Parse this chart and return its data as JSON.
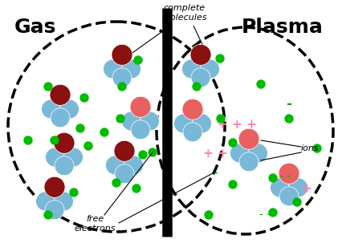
{
  "background": "#ffffff",
  "gas_label": "Gas",
  "plasma_label": "Plasma",
  "complete_molecules_label": "complete\nmolecules",
  "ions_label": "ions",
  "free_electrons_label": "free\nelectrons",
  "color_blue": "#7ab8d8",
  "color_dark_red": "#8b1010",
  "color_pink": "#e86060",
  "color_green": "#00bb00",
  "color_plus": "#ff80b0",
  "color_minus": "#00aa00",
  "figw": 4.21,
  "figh": 3.03,
  "dpi": 100
}
